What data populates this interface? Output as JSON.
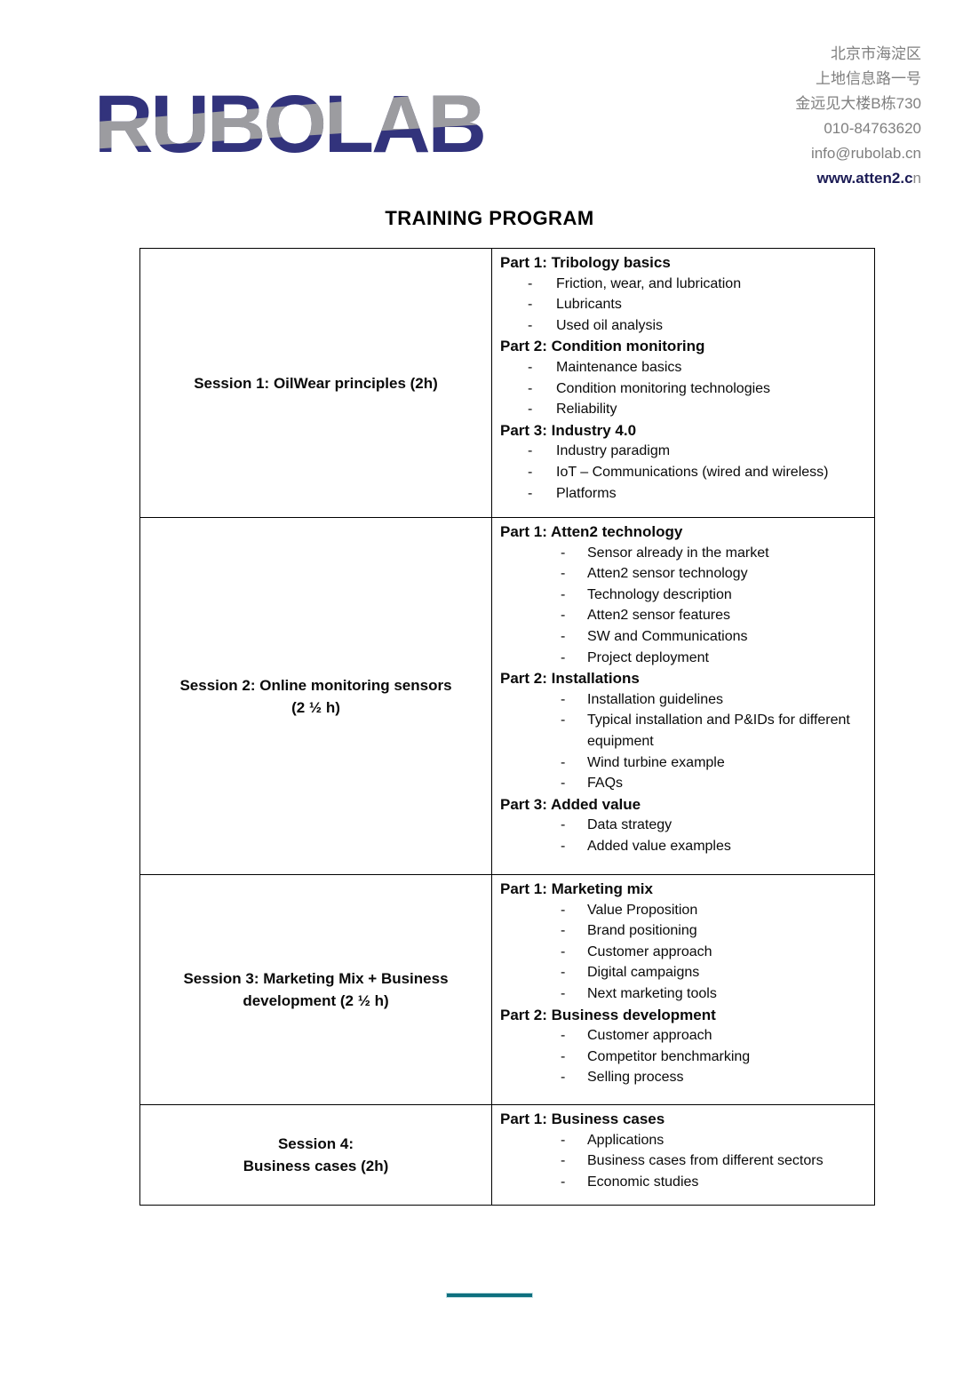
{
  "header": {
    "logo_text": "RUBOLAB",
    "address_lines": [
      "北京市海淀区",
      "上地信息路一号",
      "金远见大楼B栋730",
      "010-84763620",
      "info@rubolab.cn"
    ],
    "website": {
      "bold_part": "www.atten2.c",
      "regular_part": "n"
    }
  },
  "title": "TRAINING PROGRAM",
  "table": {
    "rows": [
      {
        "session_lines": [
          "Session 1: OilWear principles (2h)"
        ],
        "parts": [
          {
            "heading": "Part 1: Tribology basics",
            "items": [
              "Friction, wear, and lubrication",
              "Lubricants",
              "Used oil analysis"
            ]
          },
          {
            "heading": "Part 2: Condition monitoring",
            "items": [
              "Maintenance basics",
              "Condition monitoring technologies",
              "Reliability"
            ]
          },
          {
            "heading": "Part 3: Industry 4.0",
            "items": [
              "Industry paradigm",
              "IoT – Communications (wired and wireless)",
              "Platforms"
            ]
          }
        ]
      },
      {
        "session_lines": [
          "Session 2: Online monitoring sensors",
          "(2 ½ h)"
        ],
        "parts": [
          {
            "heading": "Part 1: Atten2 technology",
            "items": [
              "Sensor already in the market",
              "Atten2 sensor technology",
              "Technology description",
              "Atten2 sensor features",
              "SW and Communications",
              "Project deployment"
            ]
          },
          {
            "heading": "Part 2: Installations",
            "items": [
              "Installation guidelines",
              "Typical installation and P&IDs for different equipment",
              "Wind turbine example",
              "FAQs"
            ]
          },
          {
            "heading": "Part 3: Added value",
            "items": [
              "Data strategy",
              "Added value examples"
            ]
          }
        ]
      },
      {
        "session_lines": [
          "Session 3: Marketing Mix + Business",
          "development (2 ½ h)"
        ],
        "parts": [
          {
            "heading": "Part 1: Marketing mix",
            "items": [
              "Value Proposition",
              "Brand positioning",
              "Customer approach",
              "Digital campaigns",
              "Next marketing tools"
            ]
          },
          {
            "heading": "Part 2: Business development",
            "items": [
              "Customer approach",
              "Competitor benchmarking",
              "Selling process"
            ]
          }
        ]
      },
      {
        "session_lines": [
          "Session 4:",
          "Business cases (2h)"
        ],
        "parts": [
          {
            "heading": "Part 1: Business cases",
            "items": [
              "Applications",
              "Business cases from different sectors",
              "Economic studies"
            ]
          }
        ]
      }
    ]
  },
  "colors": {
    "logo_navy": "#32337c",
    "logo_gray": "#9c9ca0",
    "address_gray": "#7f7f7f",
    "divider_teal": "#0e707f",
    "table_border": "#000000"
  }
}
